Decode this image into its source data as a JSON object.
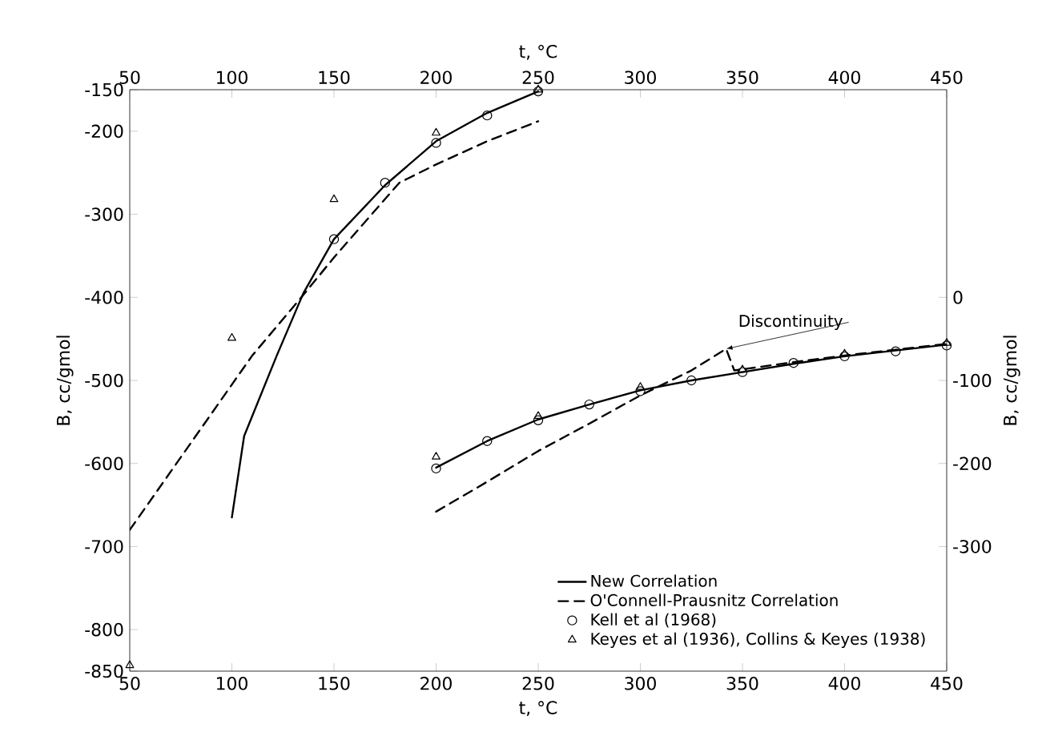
{
  "chart_data": {
    "type": "line",
    "xlabel": "t, °C",
    "x2label": "t, °C",
    "ylabel": "B, cc/gmol",
    "y2label": "B, cc/gmol",
    "xlim": [
      50,
      450
    ],
    "xticks": [
      50,
      100,
      150,
      200,
      250,
      300,
      350,
      400,
      450
    ],
    "x2lim": [
      50,
      450
    ],
    "x2ticks": [
      50,
      100,
      150,
      200,
      250,
      300,
      350,
      400,
      450
    ],
    "ylim": [
      -850,
      -150
    ],
    "yticks": [
      -150,
      -200,
      -300,
      -400,
      -500,
      -600,
      -700,
      -800,
      -850
    ],
    "y2lim": [
      -450,
      250
    ],
    "y2ticks": [
      0,
      -100,
      -200,
      -300
    ],
    "legend": "bottom right",
    "annotations": [
      {
        "text": "Discontinuity",
        "x": 342,
        "y": -462
      }
    ],
    "series": [
      {
        "name": "New Correlation",
        "line_style": "solid",
        "marker": "none",
        "color": "#000000",
        "x": [
          100,
          106,
          122,
          135,
          150,
          175,
          200,
          225,
          250
        ],
        "values": [
          -665,
          -567,
          -470,
          -395,
          -330,
          -265,
          -212,
          -178,
          -152
        ]
      },
      {
        "name": "O'Connell-Prausnitz Correlation",
        "line_style": "dashed",
        "marker": "none",
        "color": "#000000",
        "x": [
          50,
          80,
          110,
          134,
          150,
          182,
          200,
          225,
          250
        ],
        "values": [
          -680,
          -575,
          -470,
          -400,
          -352,
          -262,
          -240,
          -212,
          -188
        ]
      },
      {
        "name": "Kell et al (1968)",
        "type": "scatter",
        "marker": "circle",
        "color": "#000000",
        "x": [
          150,
          175,
          200,
          225,
          250
        ],
        "values": [
          -330,
          -262,
          -214,
          -181,
          -152
        ]
      },
      {
        "name": "Keyes et al (1936), Collins & Keyes (1938)",
        "type": "scatter",
        "marker": "triangle",
        "color": "#000000",
        "x": [
          50,
          100,
          150,
          200,
          250
        ],
        "values": [
          -843,
          -449,
          -282,
          -202,
          -150
        ]
      },
      {
        "axis": "y2",
        "line_style": "solid",
        "marker": "none",
        "color": "#000000",
        "x": [
          200,
          225,
          250,
          275,
          300,
          325,
          350,
          375,
          400,
          425,
          450
        ],
        "values": [
          -205,
          -173,
          -147,
          -129,
          -112,
          -100,
          -90,
          -80,
          -71,
          -64,
          -57
        ]
      },
      {
        "axis": "y2",
        "line_style": "dashed",
        "marker": "none",
        "color": "#000000",
        "x": [
          200,
          225,
          250,
          275,
          300,
          325,
          342,
          346,
          375,
          400,
          450
        ],
        "values": [
          -258,
          -222,
          -185,
          -152,
          -118,
          -88,
          -62,
          -88,
          -78,
          -70,
          -56
        ]
      },
      {
        "type": "scatter",
        "axis": "y2",
        "marker": "circle",
        "color": "#000000",
        "x": [
          200,
          225,
          250,
          275,
          300,
          325,
          350,
          375,
          400,
          425,
          450
        ],
        "values": [
          -206,
          -173,
          -148,
          -129,
          -113,
          -100,
          -90,
          -79,
          -71,
          -65,
          -58
        ]
      },
      {
        "type": "scatter",
        "axis": "y2",
        "marker": "triangle",
        "color": "#000000",
        "x": [
          200,
          250,
          300,
          350,
          400,
          450
        ],
        "values": [
          -192,
          -143,
          -108,
          -87,
          -68,
          -55
        ]
      }
    ]
  }
}
